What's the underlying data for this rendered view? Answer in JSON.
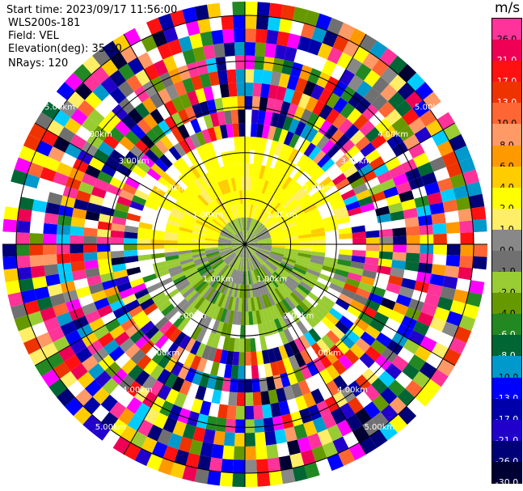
{
  "header": {
    "start_time": "Start time: 2023/09/17 11:56:00",
    "instrument": "WLS200s-181",
    "field": "Field: VEL",
    "elevation": "Elevation(deg): 35.30",
    "nrays": "NRays: 120"
  },
  "colorbar": {
    "unit": "m/s",
    "labels": [
      "26.0",
      "21.0",
      "17.0",
      "13.0",
      "10.0",
      "8.0",
      "6.0",
      "4.0",
      "2.0",
      "1.0",
      "0.0",
      "-1.0",
      "-2.0",
      "-4.0",
      "-6.0",
      "-8.0",
      "-10.0",
      "-13.0",
      "-17.0",
      "-21.0",
      "-26.0",
      "-30.0"
    ],
    "colors": [
      "#ff3399",
      "#ee0055",
      "#ff1111",
      "#ee3300",
      "#ff6633",
      "#ff9966",
      "#ff9900",
      "#ffcc00",
      "#ffff00",
      "#ffee66",
      "#888888",
      "#707070",
      "#99cc33",
      "#669900",
      "#228822",
      "#006633",
      "#0099cc",
      "#0000ff",
      "#0000aa",
      "#2200cc",
      "#000077",
      "#000033"
    ]
  },
  "range_rings": {
    "labels": [
      "1.00km",
      "2.00km",
      "3.00km",
      "4.00km",
      "5.00km"
    ]
  },
  "scan": {
    "nrays": 120,
    "nrings": 18,
    "max_range_km": 5.3
  }
}
